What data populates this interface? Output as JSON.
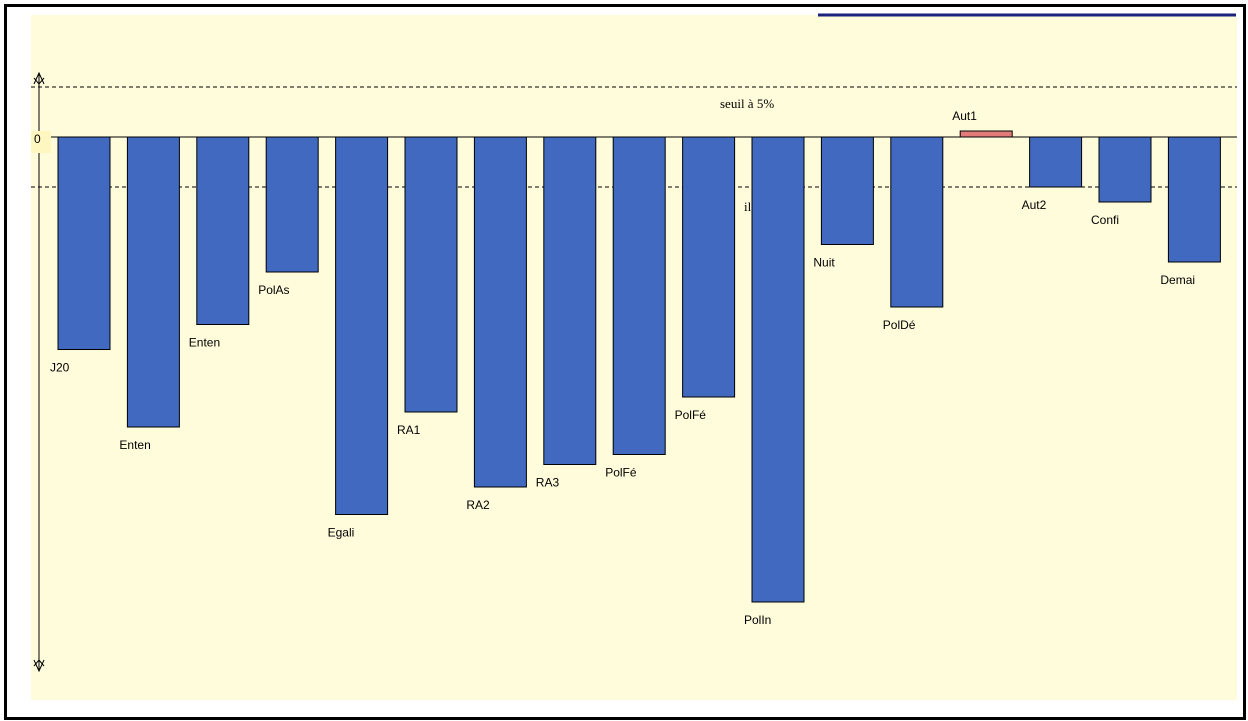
{
  "chart_data": {
    "type": "bar",
    "title": "",
    "xlabel": "",
    "ylabel": "",
    "zero_label": "0",
    "threshold_label": "seuil à 5%",
    "threshold_label_fragment": "il",
    "threshold_values": [
      1,
      -1
    ],
    "ylim": [
      -9.3,
      2.4
    ],
    "grid": false,
    "colors": {
      "negative": "#4169C0",
      "positive": "#E27A7A",
      "plot_background": "#FFFCDC",
      "header_line": "#1A237E"
    },
    "categories": [
      "J20",
      "Enten",
      "Enten",
      "PolAs",
      "Egali",
      "RA1",
      "RA2",
      "RA3",
      "PolFé",
      "PolFé",
      "PolIn",
      "Nuit",
      "PolDé",
      "Aut1",
      "Aut2",
      "Confi",
      "Demai"
    ],
    "values": [
      -4.25,
      -5.8,
      -3.75,
      -2.7,
      -7.55,
      -5.5,
      -7.0,
      -6.55,
      -6.35,
      -5.2,
      -9.3,
      -2.15,
      -3.4,
      0.12,
      -1.0,
      -1.3,
      -2.5
    ]
  }
}
